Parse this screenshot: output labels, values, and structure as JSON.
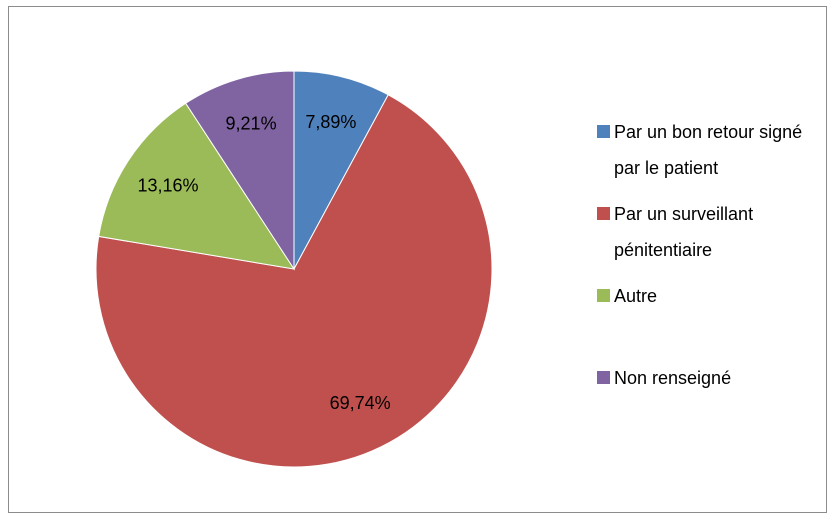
{
  "chart_data": {
    "type": "pie",
    "categories": [
      "Par un bon retour signé par le patient",
      "Par un surveillant pénitentiaire",
      "Autre",
      "Non renseigné"
    ],
    "values": [
      7.89,
      69.74,
      13.16,
      9.21
    ],
    "value_labels": [
      "7,89%",
      "69,74%",
      "13,16%",
      "9,21%"
    ],
    "colors": [
      "#4f81bd",
      "#c0504d",
      "#9bbb59",
      "#8064a2"
    ],
    "legend": "right"
  }
}
